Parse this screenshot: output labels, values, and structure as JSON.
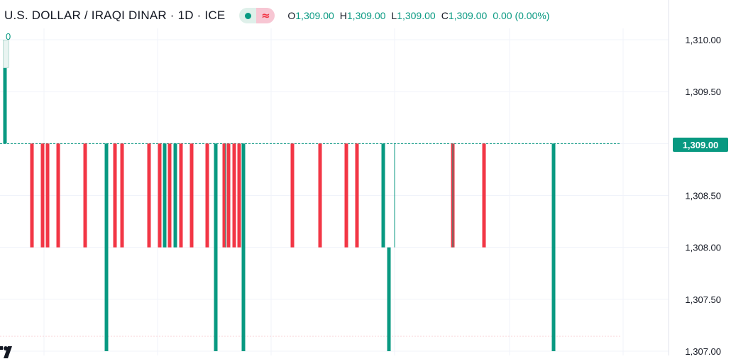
{
  "legend": {
    "symbol": "U.S. DOLLAR / IRAQI DINAR · 1D · ICE",
    "o_label": "O",
    "o_value": "1,309.00",
    "h_label": "H",
    "h_value": "1,309.00",
    "l_label": "L",
    "l_value": "1,309.00",
    "c_label": "C",
    "c_value": "1,309.00",
    "change": "0.00 (0.00%)",
    "wave_glyph": "≈"
  },
  "marker_label": "0",
  "last_price_label": "1,309.00",
  "colors": {
    "up": "#089981",
    "down": "#f23645",
    "grid": "#f0f3fa",
    "text": "#131722"
  },
  "chart_data": {
    "type": "candlestick",
    "y_ticks": [
      "1,310.00",
      "1,309.50",
      "1,309.00",
      "1,308.50",
      "1,308.00",
      "1,307.50",
      "1,307.00"
    ],
    "y_tick_values": [
      1310.0,
      1309.5,
      1309.0,
      1308.5,
      1308.0,
      1307.5,
      1307.0
    ],
    "ylim": [
      1307.0,
      1310.0
    ],
    "last_price": 1309.0,
    "grid": true,
    "candles": [
      {
        "color": "up",
        "open": 1309.0,
        "close": 1310.0
      },
      {
        "color": "down",
        "open": 1309.0,
        "close": 1308.0
      },
      {
        "color": "down",
        "open": 1309.0,
        "close": 1308.0
      },
      {
        "color": "down",
        "open": 1309.0,
        "close": 1308.0
      },
      {
        "color": "down",
        "open": 1309.0,
        "close": 1308.0
      },
      {
        "color": "down",
        "open": 1309.0,
        "close": 1308.0
      },
      {
        "color": "up",
        "open": 1307.0,
        "close": 1309.0
      },
      {
        "color": "down",
        "open": 1309.0,
        "close": 1308.0
      },
      {
        "color": "down",
        "open": 1309.0,
        "close": 1308.0
      },
      {
        "color": "down",
        "open": 1309.0,
        "close": 1308.0
      },
      {
        "color": "down",
        "open": 1309.0,
        "close": 1308.0
      },
      {
        "color": "up",
        "open": 1308.0,
        "close": 1309.0
      },
      {
        "color": "down",
        "open": 1309.0,
        "close": 1308.0
      },
      {
        "color": "up",
        "open": 1308.0,
        "close": 1309.0
      },
      {
        "color": "down",
        "open": 1309.0,
        "close": 1308.0
      },
      {
        "color": "down",
        "open": 1309.0,
        "close": 1308.0
      },
      {
        "color": "down",
        "open": 1309.0,
        "close": 1308.0
      },
      {
        "color": "up",
        "open": 1307.0,
        "close": 1309.0
      },
      {
        "color": "down",
        "open": 1309.0,
        "close": 1308.0
      },
      {
        "color": "down",
        "open": 1309.0,
        "close": 1308.0
      },
      {
        "color": "down",
        "open": 1309.0,
        "close": 1308.0
      },
      {
        "color": "down",
        "open": 1309.0,
        "close": 1308.0
      },
      {
        "color": "up",
        "open": 1307.0,
        "close": 1309.0
      },
      {
        "color": "down",
        "open": 1309.0,
        "close": 1308.0
      },
      {
        "color": "down",
        "open": 1309.0,
        "close": 1308.0
      },
      {
        "color": "down",
        "open": 1309.0,
        "close": 1308.0
      },
      {
        "color": "down",
        "open": 1309.0,
        "close": 1308.0
      },
      {
        "color": "up",
        "open": 1308.0,
        "close": 1309.0
      },
      {
        "color": "up",
        "open": 1307.0,
        "close": 1308.0
      },
      {
        "color": "down",
        "open": 1309.0,
        "close": 1308.0
      },
      {
        "color": "down",
        "open": 1309.0,
        "close": 1308.0
      },
      {
        "color": "up",
        "open": 1307.0,
        "close": 1309.0
      }
    ]
  }
}
